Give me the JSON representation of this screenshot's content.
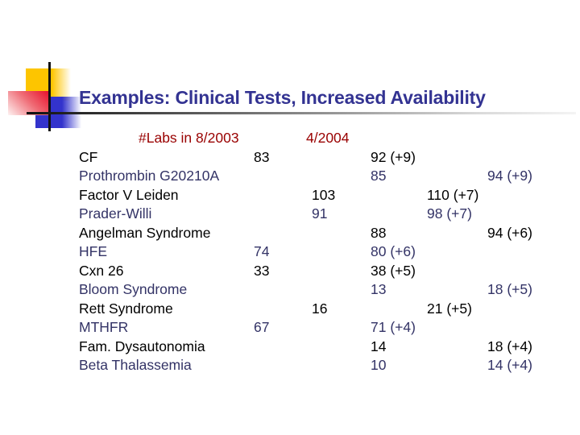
{
  "slide": {
    "title": "Examples: Clinical Tests, Increased Availability"
  },
  "colors": {
    "title": "#333392",
    "header_red": "#990000",
    "row_black": "#000000",
    "row_navy": "#333366",
    "square_yellow": "#fdc500",
    "square_blue": "#3333cc",
    "square_red": "#e8112d"
  },
  "table": {
    "header": {
      "col_2003": "#Labs in 8/2003",
      "col_2004": "4/2004"
    },
    "rows": [
      {
        "name": "CF",
        "v1": "83",
        "v2": "",
        "v3": "92 (+9)",
        "v4": "",
        "v5": ""
      },
      {
        "name": "Prothrombin G20210A",
        "v1": "",
        "v2": "",
        "v3": "85",
        "v4": "",
        "v5": "94 (+9)"
      },
      {
        "name": "Factor V Leiden",
        "v1": "",
        "v2": "103",
        "v3": "",
        "v4": "110 (+7)",
        "v5": ""
      },
      {
        "name": "Prader-Willi",
        "v1": "",
        "v2": "91",
        "v3": "",
        "v4": "98 (+7)",
        "v5": ""
      },
      {
        "name": "Angelman Syndrome",
        "v1": "",
        "v2": "",
        "v3": "88",
        "v4": "",
        "v5": "94 (+6)"
      },
      {
        "name": "HFE",
        "v1": "74",
        "v2": "",
        "v3": "80 (+6)",
        "v4": "",
        "v5": ""
      },
      {
        "name": "Cxn 26",
        "v1": "33",
        "v2": "",
        "v3": "38 (+5)",
        "v4": "",
        "v5": ""
      },
      {
        "name": "Bloom Syndrome",
        "v1": "",
        "v2": "",
        "v3": "13",
        "v4": "",
        "v5": "18 (+5)"
      },
      {
        "name": "Rett Syndrome",
        "v1": "",
        "v2": "16",
        "v3": "",
        "v4": "21 (+5)",
        "v5": ""
      },
      {
        "name": "MTHFR",
        "v1": "67",
        "v2": "",
        "v3": "71 (+4)",
        "v4": "",
        "v5": ""
      },
      {
        "name": "Fam. Dysautonomia",
        "v1": "",
        "v2": "",
        "v3": "14",
        "v4": "",
        "v5": "18 (+4)"
      },
      {
        "name": "Beta Thalassemia",
        "v1": "",
        "v2": "",
        "v3": "10",
        "v4": "",
        "v5": "14 (+4)"
      }
    ]
  }
}
